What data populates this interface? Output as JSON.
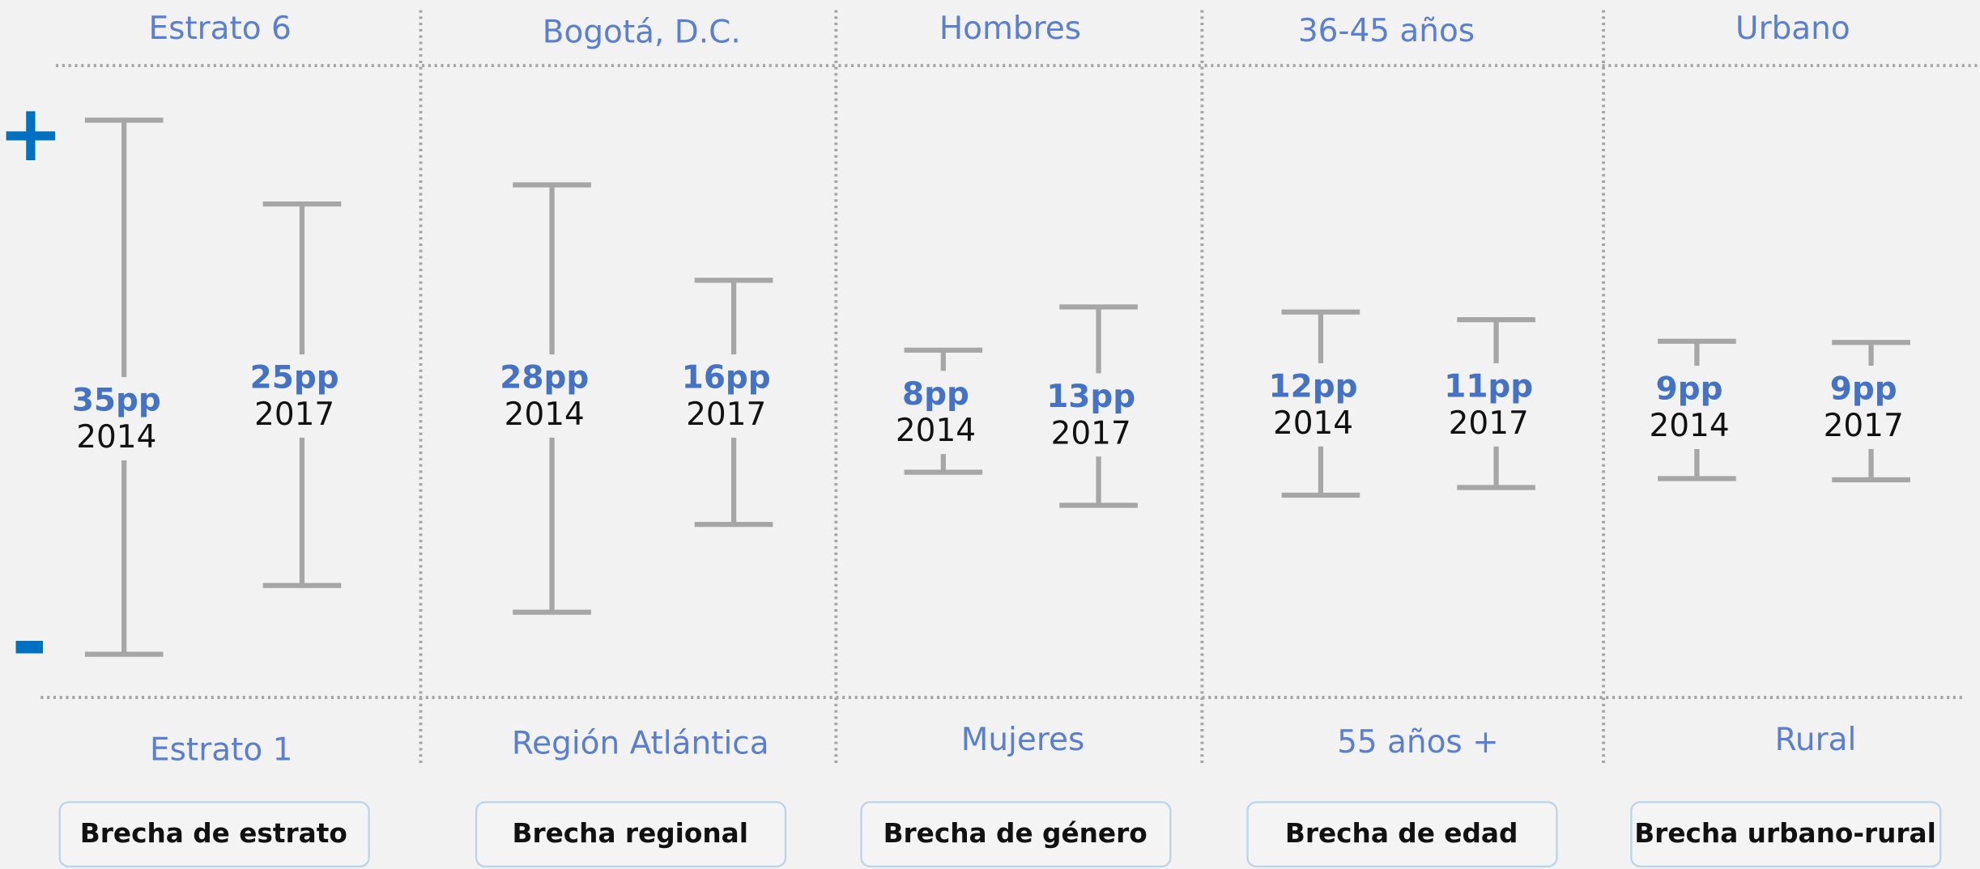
{
  "scale": {
    "high": "+",
    "low": "-"
  },
  "groups": [
    {
      "top": "Estrato 6",
      "bottom": "Estrato 1",
      "brecha": "Brecha de estrato",
      "items": [
        {
          "gap": {
            "value": 35,
            "label": "35pp"
          },
          "year": "2014"
        },
        {
          "gap": {
            "value": 25,
            "label": "25pp"
          },
          "year": "2017"
        }
      ]
    },
    {
      "top": "Bogotá, D.C.",
      "bottom": "Región Atlántica",
      "brecha": "Brecha regional",
      "items": [
        {
          "gap": {
            "value": 28,
            "label": "28pp"
          },
          "year": "2014"
        },
        {
          "gap": {
            "value": 16,
            "label": "16pp"
          },
          "year": "2017"
        }
      ]
    },
    {
      "top": "Hombres",
      "bottom": "Mujeres",
      "brecha": "Brecha de género",
      "items": [
        {
          "gap": {
            "value": 8,
            "label": "8pp"
          },
          "year": "2014"
        },
        {
          "gap": {
            "value": 13,
            "label": "13pp"
          },
          "year": "2017"
        }
      ]
    },
    {
      "top": "36-45 años",
      "bottom": "55 años +",
      "brecha": "Brecha de edad",
      "items": [
        {
          "gap": {
            "value": 12,
            "label": "12pp"
          },
          "year": "2014"
        },
        {
          "gap": {
            "value": 11,
            "label": "11pp"
          },
          "year": "2017"
        }
      ]
    },
    {
      "top": "Urbano",
      "bottom": "Rural",
      "brecha": "Brecha urbano-rural",
      "items": [
        {
          "gap": {
            "value": 9,
            "label": "9pp"
          },
          "year": "2014"
        },
        {
          "gap": {
            "value": 9,
            "label": "9pp"
          },
          "year": "2017"
        }
      ]
    }
  ]
}
